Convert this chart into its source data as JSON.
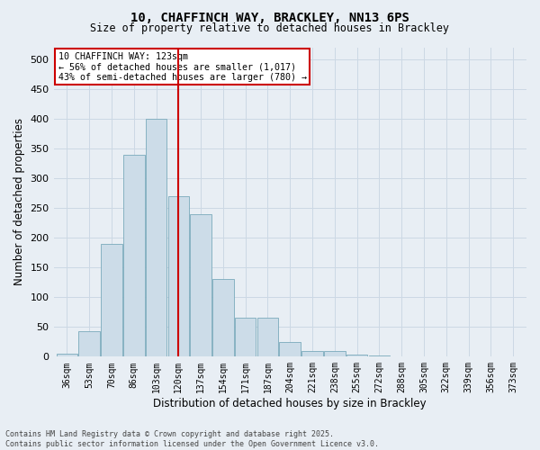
{
  "title_line1": "10, CHAFFINCH WAY, BRACKLEY, NN13 6PS",
  "title_line2": "Size of property relative to detached houses in Brackley",
  "xlabel": "Distribution of detached houses by size in Brackley",
  "ylabel": "Number of detached properties",
  "categories": [
    "36sqm",
    "53sqm",
    "70sqm",
    "86sqm",
    "103sqm",
    "120sqm",
    "137sqm",
    "154sqm",
    "171sqm",
    "187sqm",
    "204sqm",
    "221sqm",
    "238sqm",
    "255sqm",
    "272sqm",
    "288sqm",
    "305sqm",
    "322sqm",
    "339sqm",
    "356sqm",
    "373sqm"
  ],
  "values": [
    5,
    43,
    190,
    340,
    400,
    270,
    240,
    130,
    65,
    65,
    25,
    10,
    10,
    3,
    2,
    1,
    1,
    0,
    0,
    0,
    0
  ],
  "bar_color": "#ccdce8",
  "bar_edge_color": "#7aaabb",
  "vline_x": 5,
  "vline_color": "#cc0000",
  "annotation_title": "10 CHAFFINCH WAY: 123sqm",
  "annotation_line1": "← 56% of detached houses are smaller (1,017)",
  "annotation_line2": "43% of semi-detached houses are larger (780) →",
  "annotation_box_color": "#cc0000",
  "annotation_bg_color": "#ffffff",
  "ylim": [
    0,
    520
  ],
  "yticks": [
    0,
    50,
    100,
    150,
    200,
    250,
    300,
    350,
    400,
    450,
    500
  ],
  "grid_color": "#ccd8e4",
  "bg_color": "#e8eef4",
  "footnote": "Contains HM Land Registry data © Crown copyright and database right 2025.\nContains public sector information licensed under the Open Government Licence v3.0."
}
